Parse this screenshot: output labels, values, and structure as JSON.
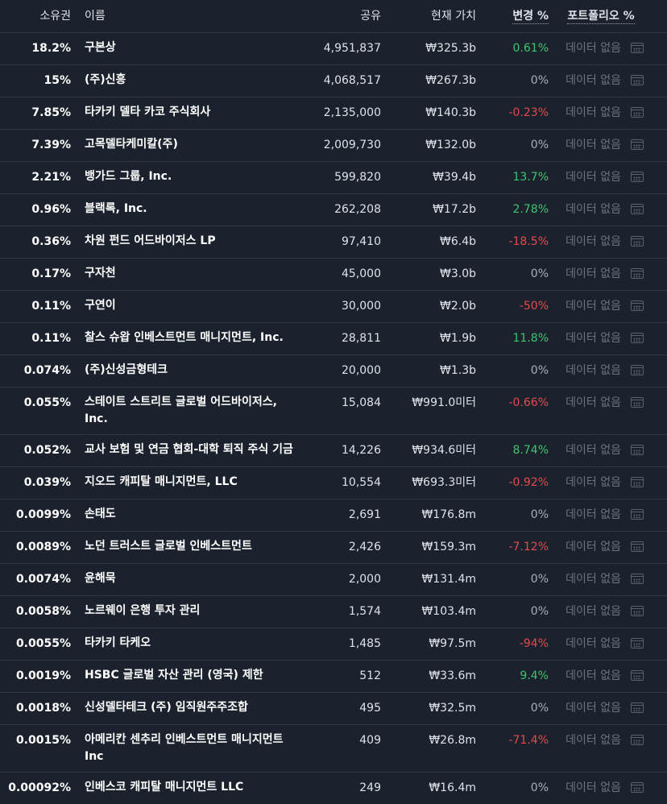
{
  "header": {
    "ownership": "소유권",
    "name": "이름",
    "shares": "공유",
    "value": "현재 가치",
    "change": "변경 %",
    "portfolio": "포트폴리오 %"
  },
  "rows": [
    {
      "own": "18.2%",
      "name": "구본상",
      "shares": "4,951,837",
      "value": "₩325.3b",
      "change": "0.61%",
      "tone": "pos",
      "portfolio": "데이터 없음"
    },
    {
      "own": "15%",
      "name": "(주)신흥",
      "shares": "4,068,517",
      "value": "₩267.3b",
      "change": "0%",
      "tone": "zero",
      "portfolio": "데이터 없음"
    },
    {
      "own": "7.85%",
      "name": "타카키 델타 카코 주식회사",
      "shares": "2,135,000",
      "value": "₩140.3b",
      "change": "-0.23%",
      "tone": "neg",
      "portfolio": "데이터 없음"
    },
    {
      "own": "7.39%",
      "name": "고목델타케미칼(주)",
      "shares": "2,009,730",
      "value": "₩132.0b",
      "change": "0%",
      "tone": "zero",
      "portfolio": "데이터 없음"
    },
    {
      "own": "2.21%",
      "name": "뱅가드 그룹, Inc.",
      "shares": "599,820",
      "value": "₩39.4b",
      "change": "13.7%",
      "tone": "pos",
      "portfolio": "데이터 없음"
    },
    {
      "own": "0.96%",
      "name": "블랙록, Inc.",
      "shares": "262,208",
      "value": "₩17.2b",
      "change": "2.78%",
      "tone": "pos",
      "portfolio": "데이터 없음"
    },
    {
      "own": "0.36%",
      "name": "차원 펀드 어드바이저스 LP",
      "shares": "97,410",
      "value": "₩6.4b",
      "change": "-18.5%",
      "tone": "neg",
      "portfolio": "데이터 없음"
    },
    {
      "own": "0.17%",
      "name": "구자천",
      "shares": "45,000",
      "value": "₩3.0b",
      "change": "0%",
      "tone": "zero",
      "portfolio": "데이터 없음"
    },
    {
      "own": "0.11%",
      "name": "구연이",
      "shares": "30,000",
      "value": "₩2.0b",
      "change": "-50%",
      "tone": "neg",
      "portfolio": "데이터 없음"
    },
    {
      "own": "0.11%",
      "name": "찰스 슈왑 인베스트먼트 매니지먼트, Inc.",
      "shares": "28,811",
      "value": "₩1.9b",
      "change": "11.8%",
      "tone": "pos",
      "portfolio": "데이터 없음"
    },
    {
      "own": "0.074%",
      "name": "(주)신성금형테크",
      "shares": "20,000",
      "value": "₩1.3b",
      "change": "0%",
      "tone": "zero",
      "portfolio": "데이터 없음"
    },
    {
      "own": "0.055%",
      "name": "스테이트 스트리트 글로벌 어드바이저스, Inc.",
      "shares": "15,084",
      "value": "₩991.0미터",
      "change": "-0.66%",
      "tone": "neg",
      "portfolio": "데이터 없음",
      "double": true
    },
    {
      "own": "0.052%",
      "name": "교사 보험 및 연금 협회-대학 퇴직 주식 기금",
      "shares": "14,226",
      "value": "₩934.6미터",
      "change": "8.74%",
      "tone": "pos",
      "portfolio": "데이터 없음"
    },
    {
      "own": "0.039%",
      "name": "지오드 캐피탈 매니지먼트, LLC",
      "shares": "10,554",
      "value": "₩693.3미터",
      "change": "-0.92%",
      "tone": "neg",
      "portfolio": "데이터 없음"
    },
    {
      "own": "0.0099%",
      "name": "손태도",
      "shares": "2,691",
      "value": "₩176.8m",
      "change": "0%",
      "tone": "zero",
      "portfolio": "데이터 없음"
    },
    {
      "own": "0.0089%",
      "name": "노던 트러스트 글로벌 인베스트먼트",
      "shares": "2,426",
      "value": "₩159.3m",
      "change": "-7.12%",
      "tone": "neg",
      "portfolio": "데이터 없음"
    },
    {
      "own": "0.0074%",
      "name": "윤해묵",
      "shares": "2,000",
      "value": "₩131.4m",
      "change": "0%",
      "tone": "zero",
      "portfolio": "데이터 없음"
    },
    {
      "own": "0.0058%",
      "name": "노르웨이 은행 투자 관리",
      "shares": "1,574",
      "value": "₩103.4m",
      "change": "0%",
      "tone": "zero",
      "portfolio": "데이터 없음"
    },
    {
      "own": "0.0055%",
      "name": "타카키 타케오",
      "shares": "1,485",
      "value": "₩97.5m",
      "change": "-94%",
      "tone": "neg",
      "portfolio": "데이터 없음"
    },
    {
      "own": "0.0019%",
      "name": "HSBC 글로벌 자산 관리 (영국) 제한",
      "shares": "512",
      "value": "₩33.6m",
      "change": "9.4%",
      "tone": "pos",
      "portfolio": "데이터 없음"
    },
    {
      "own": "0.0018%",
      "name": "신성델타테크 (주) 임직원주주조합",
      "shares": "495",
      "value": "₩32.5m",
      "change": "0%",
      "tone": "zero",
      "portfolio": "데이터 없음"
    },
    {
      "own": "0.0015%",
      "name": "아메리칸 센추리 인베스트먼트 매니지먼트 Inc",
      "shares": "409",
      "value": "₩26.8m",
      "change": "-71.4%",
      "tone": "neg",
      "portfolio": "데이터 없음",
      "double": true
    },
    {
      "own": "0.00092%",
      "name": "인베스코 캐피탈 매니지먼트 LLC",
      "shares": "249",
      "value": "₩16.4m",
      "change": "0%",
      "tone": "zero",
      "portfolio": "데이터 없음"
    }
  ]
}
